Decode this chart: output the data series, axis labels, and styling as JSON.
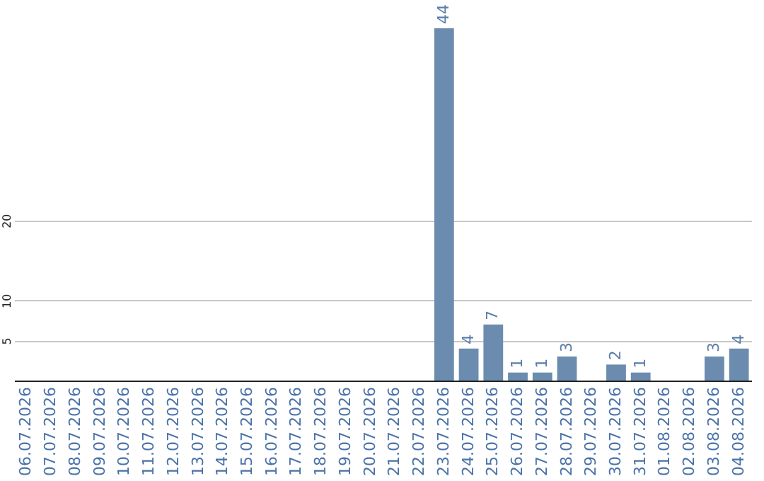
{
  "chart_data": {
    "type": "bar",
    "categories": [
      "06.07.2026",
      "07.07.2026",
      "08.07.2026",
      "09.07.2026",
      "10.07.2026",
      "11.07.2026",
      "12.07.2026",
      "13.07.2026",
      "14.07.2026",
      "15.07.2026",
      "16.07.2026",
      "17.07.2026",
      "18.07.2026",
      "19.07.2026",
      "20.07.2026",
      "21.07.2026",
      "22.07.2026",
      "23.07.2026",
      "24.07.2026",
      "25.07.2026",
      "26.07.2026",
      "27.07.2026",
      "28.07.2026",
      "29.07.2026",
      "30.07.2026",
      "31.07.2026",
      "01.08.2026",
      "02.08.2026",
      "03.08.2026",
      "04.08.2026"
    ],
    "values": [
      null,
      null,
      null,
      null,
      null,
      null,
      null,
      null,
      null,
      null,
      null,
      null,
      null,
      null,
      null,
      null,
      null,
      44,
      4,
      7,
      1,
      1,
      3,
      null,
      2,
      1,
      null,
      null,
      3,
      4
    ],
    "color": "#6b8cae",
    "ylim": [
      0,
      44
    ],
    "yticks": [
      5,
      10,
      20
    ],
    "grid": "y",
    "data_labels": true
  }
}
